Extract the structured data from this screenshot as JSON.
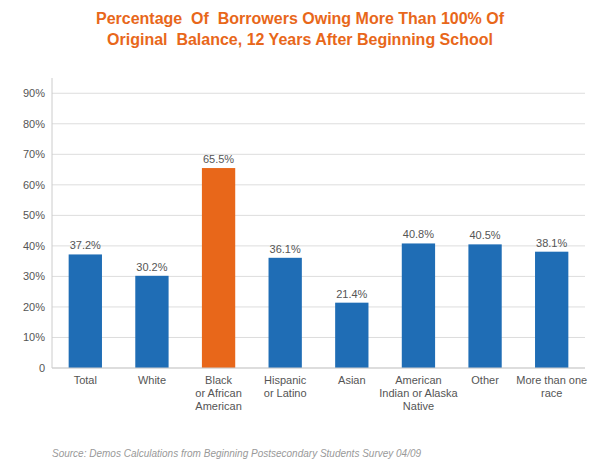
{
  "chart_data": {
    "type": "bar",
    "title": "Percentage  Of  Borrowers Owing More Than 100% Of\nOriginal  Balance, 12 Years After Beginning School",
    "categories": [
      "Total",
      "White",
      "Black\nor African\nAmerican",
      "Hispanic\nor Latino",
      "Asian",
      "American\nIndian or Alaska\nNative",
      "Other",
      "More than one\nrace"
    ],
    "values": [
      37.2,
      30.2,
      65.5,
      36.1,
      21.4,
      40.8,
      40.5,
      38.1
    ],
    "value_labels": [
      "37.2%",
      "30.2%",
      "65.5%",
      "36.1%",
      "21.4%",
      "40.8%",
      "40.5%",
      "38.1%"
    ],
    "colors": [
      "#1F6DB5",
      "#1F6DB5",
      "#E8671A",
      "#1F6DB5",
      "#1F6DB5",
      "#1F6DB5",
      "#1F6DB5",
      "#1F6DB5"
    ],
    "title_color": "#E8671A",
    "ylim": [
      0,
      95
    ],
    "yticks": [
      0,
      {
        "value": 10,
        "label": "10%"
      },
      {
        "value": 20,
        "label": "20%"
      },
      {
        "value": 30,
        "label": "30%"
      },
      {
        "value": 40,
        "label": "40%"
      },
      {
        "value": 50,
        "label": "50%"
      },
      {
        "value": 60,
        "label": "60%"
      },
      {
        "value": 70,
        "label": "70%"
      },
      {
        "value": 80,
        "label": "80%"
      },
      {
        "value": 90,
        "label": "90%"
      }
    ],
    "grid": true,
    "data_labels": true,
    "source": "Source: Demos Calculations from Beginning Postsecondary Students Survey 04/09"
  }
}
